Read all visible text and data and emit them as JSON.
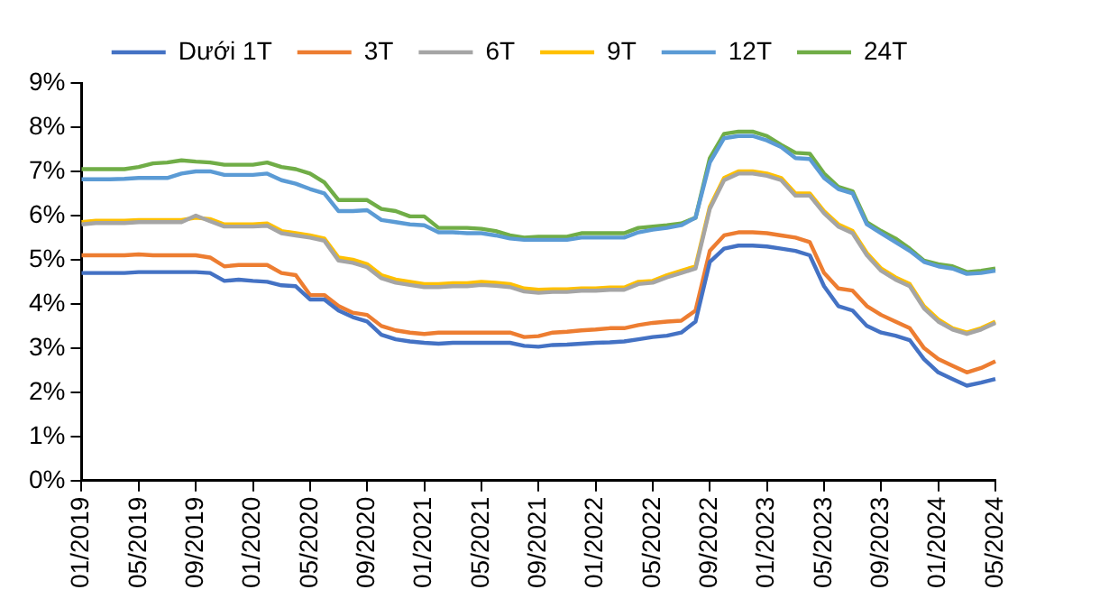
{
  "chart_data": {
    "type": "line",
    "categories": [
      "01/2019",
      null,
      null,
      null,
      "05/2019",
      null,
      null,
      null,
      "09/2019",
      null,
      null,
      null,
      "01/2020",
      null,
      null,
      null,
      "05/2020",
      null,
      null,
      null,
      "09/2020",
      null,
      null,
      null,
      "01/2021",
      null,
      null,
      null,
      "05/2021",
      null,
      null,
      null,
      "09/2021",
      null,
      null,
      null,
      "01/2022",
      null,
      null,
      null,
      "05/2022",
      null,
      null,
      null,
      "09/2022",
      null,
      null,
      null,
      "01/2023",
      null,
      null,
      null,
      "05/2023",
      null,
      null,
      null,
      "09/2023",
      null,
      null,
      null,
      "01/2024",
      null,
      null,
      null,
      "05/2024"
    ],
    "series": [
      {
        "name": "Dưới 1T",
        "color": "#4472c4",
        "values": [
          4.7,
          4.7,
          4.7,
          4.7,
          4.72,
          4.72,
          4.72,
          4.72,
          4.72,
          4.7,
          4.52,
          4.55,
          4.52,
          4.5,
          4.42,
          4.4,
          4.1,
          4.1,
          3.85,
          3.7,
          3.6,
          3.3,
          3.2,
          3.15,
          3.12,
          3.1,
          3.12,
          3.12,
          3.12,
          3.12,
          3.12,
          3.05,
          3.03,
          3.07,
          3.08,
          3.1,
          3.12,
          3.13,
          3.15,
          3.2,
          3.25,
          3.28,
          3.35,
          3.6,
          4.95,
          5.25,
          5.32,
          5.32,
          5.3,
          5.25,
          5.2,
          5.1,
          4.4,
          3.95,
          3.85,
          3.5,
          3.35,
          3.28,
          3.18,
          2.75,
          2.45,
          2.3,
          2.15,
          2.22,
          2.3
        ]
      },
      {
        "name": "3T",
        "color": "#ed7d31",
        "values": [
          5.1,
          5.1,
          5.1,
          5.1,
          5.12,
          5.1,
          5.1,
          5.1,
          5.1,
          5.05,
          4.85,
          4.88,
          4.88,
          4.88,
          4.7,
          4.65,
          4.2,
          4.2,
          3.95,
          3.8,
          3.75,
          3.5,
          3.4,
          3.35,
          3.32,
          3.35,
          3.35,
          3.35,
          3.35,
          3.35,
          3.35,
          3.25,
          3.27,
          3.35,
          3.37,
          3.4,
          3.42,
          3.45,
          3.45,
          3.52,
          3.57,
          3.6,
          3.62,
          3.85,
          5.2,
          5.55,
          5.62,
          5.62,
          5.6,
          5.55,
          5.5,
          5.4,
          4.7,
          4.35,
          4.3,
          3.95,
          3.75,
          3.6,
          3.45,
          3.0,
          2.75,
          2.6,
          2.45,
          2.55,
          2.7
        ]
      },
      {
        "name": "6T",
        "color": "#a5a5a5",
        "values": [
          5.8,
          5.83,
          5.83,
          5.83,
          5.85,
          5.85,
          5.85,
          5.85,
          6.0,
          5.87,
          5.75,
          5.75,
          5.75,
          5.77,
          5.6,
          5.55,
          5.5,
          5.43,
          4.98,
          4.93,
          4.83,
          4.58,
          4.48,
          4.43,
          4.38,
          4.38,
          4.4,
          4.4,
          4.43,
          4.41,
          4.38,
          4.28,
          4.25,
          4.27,
          4.27,
          4.3,
          4.3,
          4.32,
          4.32,
          4.45,
          4.48,
          4.6,
          4.7,
          4.8,
          6.15,
          6.8,
          6.95,
          6.95,
          6.9,
          6.8,
          6.45,
          6.45,
          6.05,
          5.75,
          5.6,
          5.1,
          4.75,
          4.55,
          4.4,
          3.9,
          3.6,
          3.42,
          3.32,
          3.42,
          3.57
        ]
      },
      {
        "name": "9T",
        "color": "#ffc000",
        "values": [
          5.85,
          5.88,
          5.88,
          5.88,
          5.9,
          5.9,
          5.9,
          5.9,
          5.95,
          5.92,
          5.8,
          5.8,
          5.8,
          5.82,
          5.65,
          5.6,
          5.55,
          5.48,
          5.05,
          5.0,
          4.9,
          4.65,
          4.55,
          4.5,
          4.45,
          4.45,
          4.47,
          4.47,
          4.5,
          4.48,
          4.45,
          4.35,
          4.32,
          4.33,
          4.33,
          4.35,
          4.35,
          4.37,
          4.37,
          4.5,
          4.52,
          4.65,
          4.75,
          4.85,
          6.2,
          6.85,
          7.0,
          7.0,
          6.95,
          6.85,
          6.5,
          6.5,
          6.1,
          5.8,
          5.65,
          5.15,
          4.8,
          4.6,
          4.45,
          3.95,
          3.65,
          3.45,
          3.35,
          3.45,
          3.6
        ]
      },
      {
        "name": "12T",
        "color": "#5b9bd5",
        "values": [
          6.82,
          6.82,
          6.82,
          6.83,
          6.85,
          6.85,
          6.85,
          6.95,
          7.0,
          7.0,
          6.92,
          6.92,
          6.92,
          6.95,
          6.8,
          6.72,
          6.6,
          6.5,
          6.1,
          6.1,
          6.12,
          5.9,
          5.85,
          5.8,
          5.78,
          5.62,
          5.62,
          5.6,
          5.6,
          5.55,
          5.48,
          5.45,
          5.45,
          5.45,
          5.45,
          5.5,
          5.5,
          5.5,
          5.5,
          5.62,
          5.68,
          5.72,
          5.78,
          5.95,
          7.2,
          7.75,
          7.8,
          7.8,
          7.7,
          7.55,
          7.3,
          7.28,
          6.85,
          6.6,
          6.5,
          5.8,
          5.6,
          5.4,
          5.2,
          4.95,
          4.85,
          4.8,
          4.68,
          4.7,
          4.75
        ]
      },
      {
        "name": "24T",
        "color": "#70ad47",
        "values": [
          7.05,
          7.05,
          7.05,
          7.05,
          7.1,
          7.18,
          7.2,
          7.25,
          7.22,
          7.2,
          7.15,
          7.15,
          7.15,
          7.2,
          7.1,
          7.05,
          6.95,
          6.75,
          6.35,
          6.35,
          6.35,
          6.15,
          6.1,
          5.98,
          5.98,
          5.72,
          5.72,
          5.72,
          5.7,
          5.65,
          5.55,
          5.5,
          5.52,
          5.52,
          5.52,
          5.6,
          5.6,
          5.6,
          5.6,
          5.72,
          5.75,
          5.78,
          5.82,
          5.95,
          7.3,
          7.85,
          7.9,
          7.9,
          7.8,
          7.6,
          7.42,
          7.4,
          6.95,
          6.65,
          6.55,
          5.85,
          5.65,
          5.48,
          5.25,
          4.98,
          4.9,
          4.85,
          4.72,
          4.75,
          4.8
        ]
      }
    ],
    "ylim": [
      0,
      9
    ],
    "yticks": [
      {
        "value": 0,
        "label": "0%"
      },
      {
        "value": 1,
        "label": "1%"
      },
      {
        "value": 2,
        "label": "2%"
      },
      {
        "value": 3,
        "label": "3%"
      },
      {
        "value": 4,
        "label": "4%"
      },
      {
        "value": 5,
        "label": "5%"
      },
      {
        "value": 6,
        "label": "6%"
      },
      {
        "value": 7,
        "label": "7%"
      },
      {
        "value": 8,
        "label": "8%"
      },
      {
        "value": 9,
        "label": "9%"
      }
    ],
    "grid": false,
    "legend": "top",
    "marker": "none",
    "line_style": "solid"
  }
}
